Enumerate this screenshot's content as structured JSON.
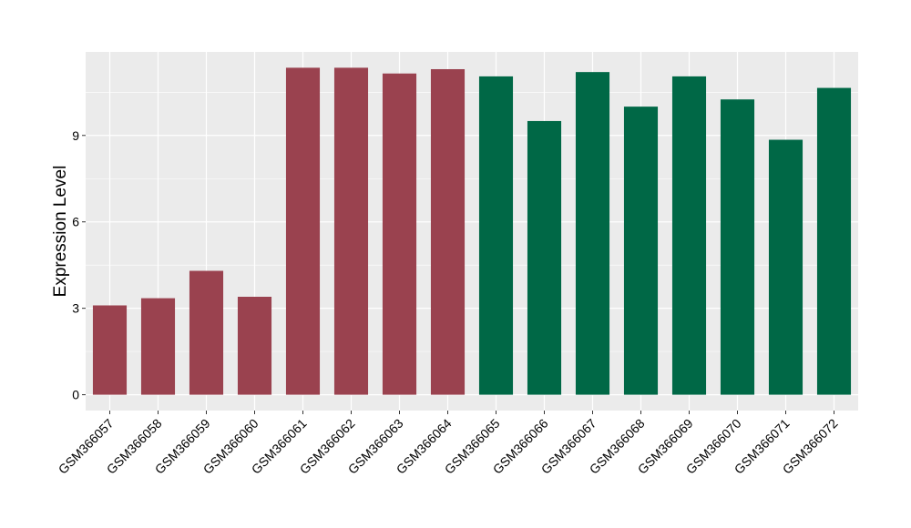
{
  "chart_data": {
    "type": "bar",
    "title": "",
    "xlabel": "",
    "ylabel": "Expression Level",
    "categories": [
      "GSM366057",
      "GSM366058",
      "GSM366059",
      "GSM366060",
      "GSM366061",
      "GSM366062",
      "GSM366063",
      "GSM366064",
      "GSM366065",
      "GSM366066",
      "GSM366067",
      "GSM366068",
      "GSM366069",
      "GSM366070",
      "GSM366071",
      "GSM366072"
    ],
    "values": [
      3.1,
      3.35,
      4.3,
      3.4,
      11.35,
      11.35,
      11.15,
      11.3,
      11.05,
      9.5,
      11.2,
      10.0,
      11.05,
      10.25,
      8.85,
      10.65
    ],
    "colors": [
      "#9a424f",
      "#9a424f",
      "#9a424f",
      "#9a424f",
      "#9a424f",
      "#9a424f",
      "#9a424f",
      "#9a424f",
      "#006846",
      "#006846",
      "#006846",
      "#006846",
      "#006846",
      "#006846",
      "#006846",
      "#006846"
    ],
    "yticks": [
      0,
      3,
      6,
      9
    ],
    "ylim": [
      -0.55,
      11.9
    ],
    "grid": true,
    "legend": "none",
    "panel_background": "#ebebeb",
    "grid_color": "#ffffff"
  }
}
